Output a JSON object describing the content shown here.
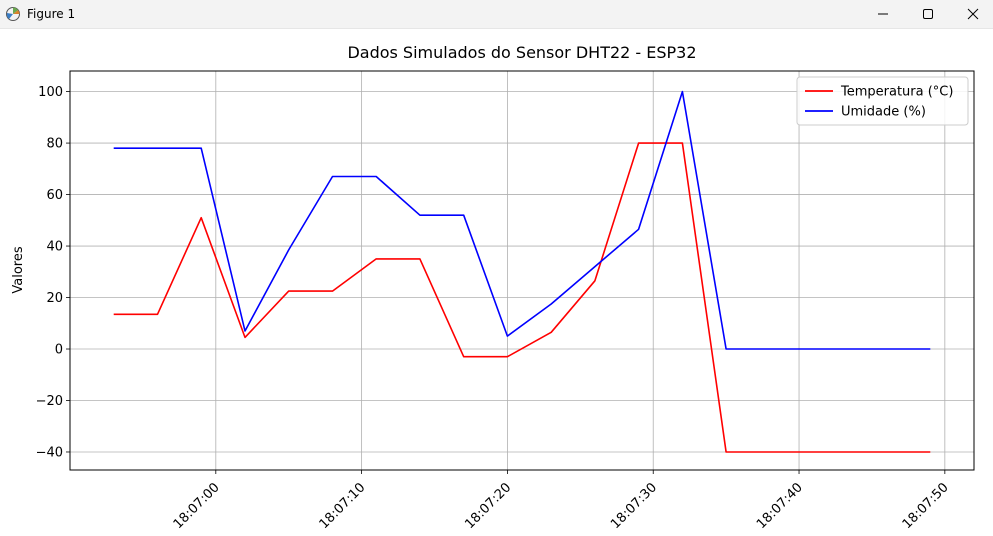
{
  "window": {
    "title": "Figure 1",
    "controls": [
      "minimize",
      "maximize",
      "close"
    ]
  },
  "chart_data": {
    "type": "line",
    "title": "Dados Simulados do Sensor DHT22 - ESP32",
    "xlabel": "",
    "ylabel": "Valores",
    "x_type": "time",
    "x": [
      "18:06:53",
      "18:06:56",
      "18:06:59",
      "18:07:02",
      "18:07:05",
      "18:07:08",
      "18:07:11",
      "18:07:14",
      "18:07:17",
      "18:07:20",
      "18:07:23",
      "18:07:26",
      "18:07:29",
      "18:07:32",
      "18:07:35",
      "18:07:38",
      "18:07:41",
      "18:07:44",
      "18:07:47",
      "18:07:49"
    ],
    "xlim": [
      "18:06:50",
      "18:07:52"
    ],
    "ylim": [
      -47,
      108
    ],
    "xticks": [
      "18:07:00",
      "18:07:10",
      "18:07:20",
      "18:07:30",
      "18:07:40",
      "18:07:50"
    ],
    "yticks": [
      -40,
      -20,
      0,
      20,
      40,
      60,
      80,
      100
    ],
    "ytick_labels": [
      "−40",
      "−20",
      "0",
      "20",
      "40",
      "60",
      "80",
      "100"
    ],
    "grid": true,
    "legend": "top-right",
    "series": [
      {
        "name": "Temperatura (°C)",
        "color": "#ff0000",
        "values": [
          13.5,
          13.5,
          51,
          4.5,
          22.5,
          22.5,
          35,
          35,
          -3,
          -3,
          6.5,
          26.5,
          80,
          80,
          -40,
          -40,
          -40,
          -40,
          -40,
          -40
        ]
      },
      {
        "name": "Umidade (%)",
        "color": "#0000ff",
        "values": [
          78,
          78,
          78,
          7,
          38.5,
          67,
          67,
          52,
          52,
          5,
          17.5,
          32,
          46.5,
          100,
          0,
          0,
          0,
          0,
          0,
          0
        ]
      }
    ]
  }
}
